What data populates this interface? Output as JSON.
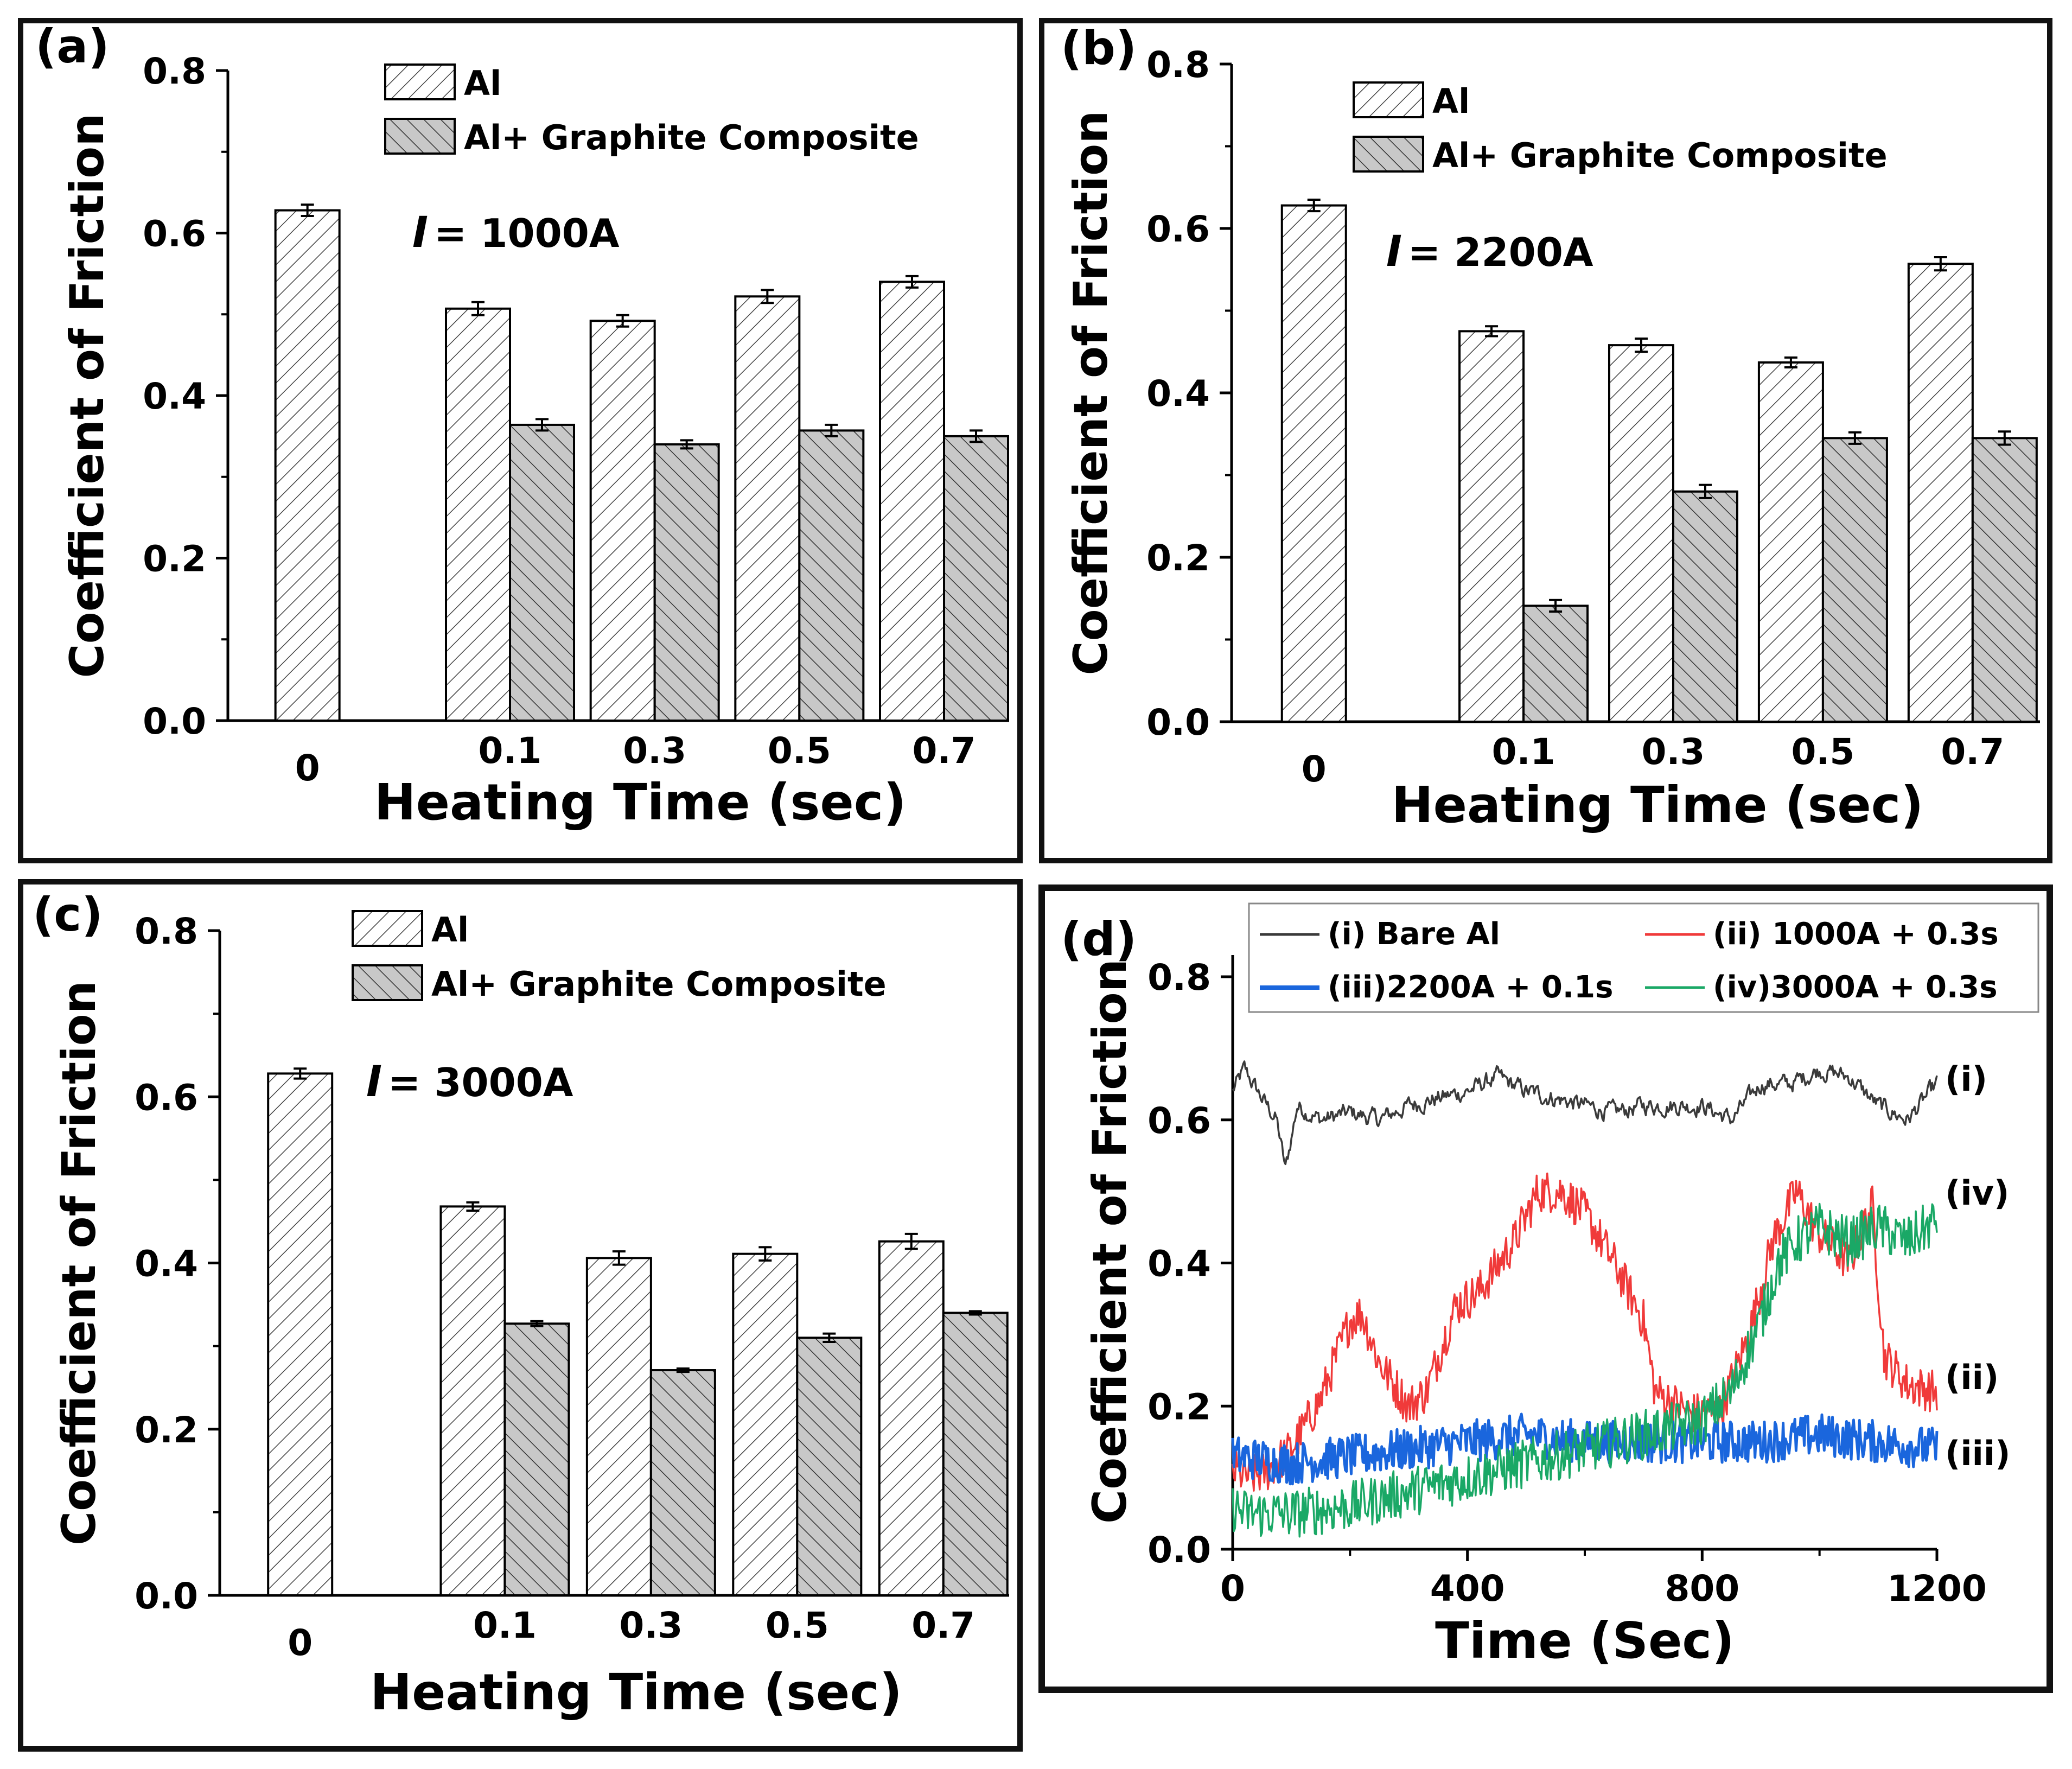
{
  "chart_data": [
    {
      "panel": "(a)",
      "type": "bar",
      "current_label": "= 1000A",
      "current_symbol": "I",
      "xlabel": "Heating Time (sec)",
      "ylabel": "Coefficient of Friction",
      "categories": [
        "0",
        "0.1",
        "0.3",
        "0.5",
        "0.7"
      ],
      "ylim": [
        0,
        0.8
      ],
      "yticks": [
        "0.0",
        "0.2",
        "0.4",
        "0.6",
        "0.8"
      ],
      "series": [
        {
          "name": "Al",
          "pattern": "hatch-light",
          "values": [
            0.628,
            0.507,
            0.492,
            0.522,
            0.54
          ],
          "errors": [
            0.007,
            0.008,
            0.007,
            0.008,
            0.007
          ]
        },
        {
          "name": "Al+ Graphite Composite",
          "pattern": "hatch-grey",
          "values": [
            null,
            0.364,
            0.34,
            0.357,
            0.35
          ],
          "errors": [
            null,
            0.007,
            0.005,
            0.007,
            0.007
          ]
        }
      ]
    },
    {
      "panel": "(b)",
      "type": "bar",
      "current_label": "= 2200A",
      "current_symbol": "I",
      "xlabel": "Heating Time (sec)",
      "ylabel": "Coefficient of Friction",
      "categories": [
        "0",
        "0.1",
        "0.3",
        "0.5",
        "0.7"
      ],
      "ylim": [
        0,
        0.8
      ],
      "yticks": [
        "0.0",
        "0.2",
        "0.4",
        "0.6",
        "0.8"
      ],
      "series": [
        {
          "name": "Al",
          "pattern": "hatch-light",
          "values": [
            0.628,
            0.475,
            0.458,
            0.437,
            0.557
          ],
          "errors": [
            0.007,
            0.006,
            0.008,
            0.006,
            0.008
          ]
        },
        {
          "name": "Al+ Graphite Composite",
          "pattern": "hatch-grey",
          "values": [
            null,
            0.141,
            0.28,
            0.345,
            0.345
          ],
          "errors": [
            null,
            0.007,
            0.008,
            0.007,
            0.008
          ]
        }
      ]
    },
    {
      "panel": "(c)",
      "type": "bar",
      "current_label": "= 3000A",
      "current_symbol": "I",
      "xlabel": "Heating Time (sec)",
      "ylabel": "Coefficient of Friction",
      "categories": [
        "0",
        "0.1",
        "0.3",
        "0.5",
        "0.7"
      ],
      "ylim": [
        0,
        0.8
      ],
      "yticks": [
        "0.0",
        "0.2",
        "0.4",
        "0.6",
        "0.8"
      ],
      "series": [
        {
          "name": "Al",
          "pattern": "hatch-light",
          "values": [
            0.628,
            0.468,
            0.406,
            0.411,
            0.426
          ],
          "errors": [
            0.006,
            0.005,
            0.008,
            0.008,
            0.009
          ]
        },
        {
          "name": "Al+ Graphite Composite",
          "pattern": "hatch-grey",
          "values": [
            null,
            0.327,
            0.271,
            0.31,
            0.34
          ],
          "errors": [
            null,
            0.003,
            0.002,
            0.005,
            0.002
          ]
        }
      ]
    },
    {
      "panel": "(d)",
      "type": "line",
      "xlabel": "Time (Sec)",
      "ylabel": "Coefficient of Friction",
      "xlim": [
        0,
        1200
      ],
      "ylim": [
        0,
        0.8
      ],
      "xticks": [
        "0",
        "400",
        "800",
        "1200"
      ],
      "yticks": [
        "0.0",
        "0.2",
        "0.4",
        "0.6",
        "0.8"
      ],
      "series": [
        {
          "name": "(i) Bare Al",
          "tag": "(i)",
          "color": "#3a3a3a",
          "noise": 0.025,
          "x": [
            0,
            20,
            50,
            75,
            90,
            110,
            150,
            200,
            250,
            300,
            350,
            400,
            450,
            500,
            550,
            600,
            650,
            700,
            750,
            800,
            850,
            900,
            950,
            1000,
            1050,
            1100,
            1150,
            1200
          ],
          "y": [
            0.64,
            0.67,
            0.63,
            0.6,
            0.53,
            0.62,
            0.6,
            0.61,
            0.6,
            0.62,
            0.63,
            0.64,
            0.66,
            0.64,
            0.63,
            0.62,
            0.61,
            0.62,
            0.62,
            0.62,
            0.6,
            0.65,
            0.65,
            0.67,
            0.66,
            0.62,
            0.6,
            0.65
          ]
        },
        {
          "name": "(ii) 1000A + 0.3s",
          "tag": "(ii)",
          "color": "#f03a3a",
          "noise": 0.03,
          "x": [
            0,
            30,
            60,
            100,
            150,
            200,
            220,
            250,
            300,
            330,
            380,
            420,
            480,
            520,
            560,
            600,
            650,
            700,
            720,
            780,
            830,
            880,
            920,
            960,
            1000,
            1050,
            1090,
            1110,
            1150,
            1200
          ],
          "y": [
            0.11,
            0.1,
            0.11,
            0.14,
            0.21,
            0.32,
            0.33,
            0.26,
            0.2,
            0.22,
            0.34,
            0.36,
            0.43,
            0.5,
            0.5,
            0.47,
            0.4,
            0.32,
            0.22,
            0.19,
            0.19,
            0.3,
            0.43,
            0.5,
            0.44,
            0.4,
            0.48,
            0.27,
            0.23,
            0.22
          ]
        },
        {
          "name": "(iii)2200A + 0.1s",
          "tag": "(iii)",
          "color": "#1a66dd",
          "noise": 0.03,
          "x": [
            0,
            100,
            200,
            300,
            400,
            500,
            600,
            700,
            800,
            900,
            1000,
            1100,
            1200
          ],
          "y": [
            0.13,
            0.12,
            0.13,
            0.14,
            0.15,
            0.16,
            0.15,
            0.15,
            0.15,
            0.15,
            0.16,
            0.15,
            0.14
          ]
        },
        {
          "name": "(iv)3000A + 0.3s",
          "tag": "(iv)",
          "color": "#1aa866",
          "noise": 0.035,
          "x": [
            0,
            20,
            100,
            200,
            300,
            400,
            500,
            600,
            700,
            750,
            800,
            850,
            900,
            930,
            960,
            1000,
            1050,
            1100,
            1150,
            1200
          ],
          "y": [
            0.06,
            0.05,
            0.05,
            0.06,
            0.08,
            0.1,
            0.12,
            0.14,
            0.16,
            0.17,
            0.18,
            0.22,
            0.32,
            0.4,
            0.43,
            0.45,
            0.43,
            0.45,
            0.43,
            0.46
          ]
        }
      ]
    }
  ]
}
